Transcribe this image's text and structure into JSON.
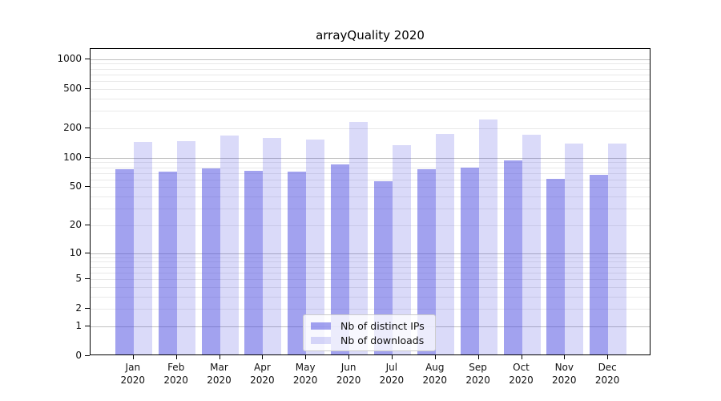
{
  "title": "arrayQuality 2020",
  "chart_data": {
    "type": "bar",
    "title": "arrayQuality 2020",
    "categories": [
      "Jan",
      "Feb",
      "Mar",
      "Apr",
      "May",
      "Jun",
      "Jul",
      "Aug",
      "Sep",
      "Oct",
      "Nov",
      "Dec"
    ],
    "category_year": "2020",
    "series": [
      {
        "name": "Nb of distinct IPs",
        "color": "rgba(69,69,223,0.5)",
        "values": [
          74,
          69,
          75,
          71,
          69,
          82,
          55,
          74,
          76,
          90,
          59,
          64
        ]
      },
      {
        "name": "Nb of downloads",
        "color": "rgba(69,69,223,0.2)",
        "values": [
          140,
          141,
          163,
          153,
          147,
          224,
          129,
          168,
          235,
          165,
          134,
          135
        ]
      }
    ],
    "xlabel": "",
    "ylabel": "",
    "yscale": "log10(1+v)",
    "yticks": [
      0,
      1,
      2,
      5,
      10,
      20,
      50,
      100,
      200,
      500,
      1000
    ],
    "ylim": [
      0,
      1270
    ],
    "grid": true,
    "legend_position": "lower-center"
  }
}
